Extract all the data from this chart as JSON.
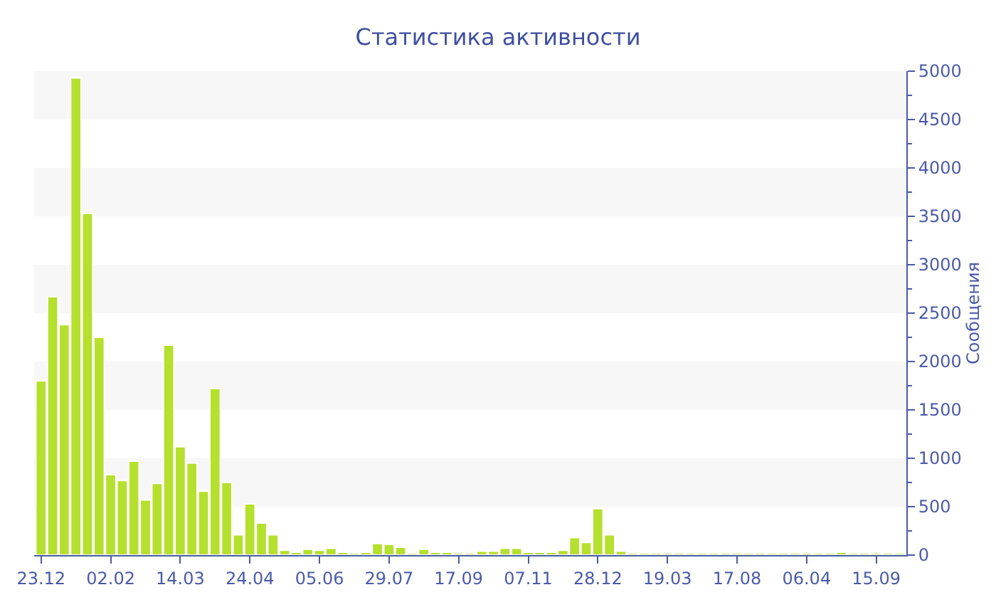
{
  "chart_data": {
    "type": "bar",
    "title": "Статистика активности",
    "ylabel": "Сообщения",
    "color": "#b5e02e",
    "categories": [
      "23.12",
      null,
      null,
      null,
      null,
      null,
      "02.02",
      null,
      null,
      null,
      null,
      null,
      "14.03",
      null,
      null,
      null,
      null,
      null,
      "24.04",
      null,
      null,
      null,
      null,
      null,
      "05.06",
      null,
      null,
      null,
      null,
      null,
      "29.07",
      null,
      null,
      null,
      null,
      null,
      "17.09",
      null,
      null,
      null,
      null,
      null,
      "07.11",
      null,
      null,
      null,
      null,
      null,
      "28.12",
      null,
      null,
      null,
      null,
      null,
      "19.03",
      null,
      null,
      null,
      null,
      null,
      "17.08",
      null,
      null,
      null,
      null,
      null,
      "06.04",
      null,
      null,
      null,
      null,
      null,
      "15.09",
      null,
      null
    ],
    "values": [
      1800,
      2670,
      2380,
      4930,
      3530,
      2250,
      830,
      770,
      970,
      570,
      740,
      2170,
      1120,
      950,
      660,
      1720,
      750,
      210,
      530,
      330,
      210,
      50,
      30,
      60,
      50,
      70,
      30,
      20,
      30,
      120,
      110,
      80,
      20,
      60,
      30,
      30,
      20,
      20,
      40,
      40,
      70,
      70,
      30,
      30,
      30,
      50,
      180,
      130,
      480,
      210,
      40,
      20,
      20,
      20,
      20,
      20,
      20,
      20,
      20,
      20,
      20,
      20,
      20,
      20,
      20,
      20,
      20,
      20,
      20,
      30,
      20,
      20,
      20,
      20,
      20
    ],
    "ylim": [
      0,
      5000
    ],
    "yticks": [
      0,
      500,
      1000,
      1500,
      2000,
      2500,
      3000,
      3500,
      4000,
      4500,
      5000
    ]
  }
}
